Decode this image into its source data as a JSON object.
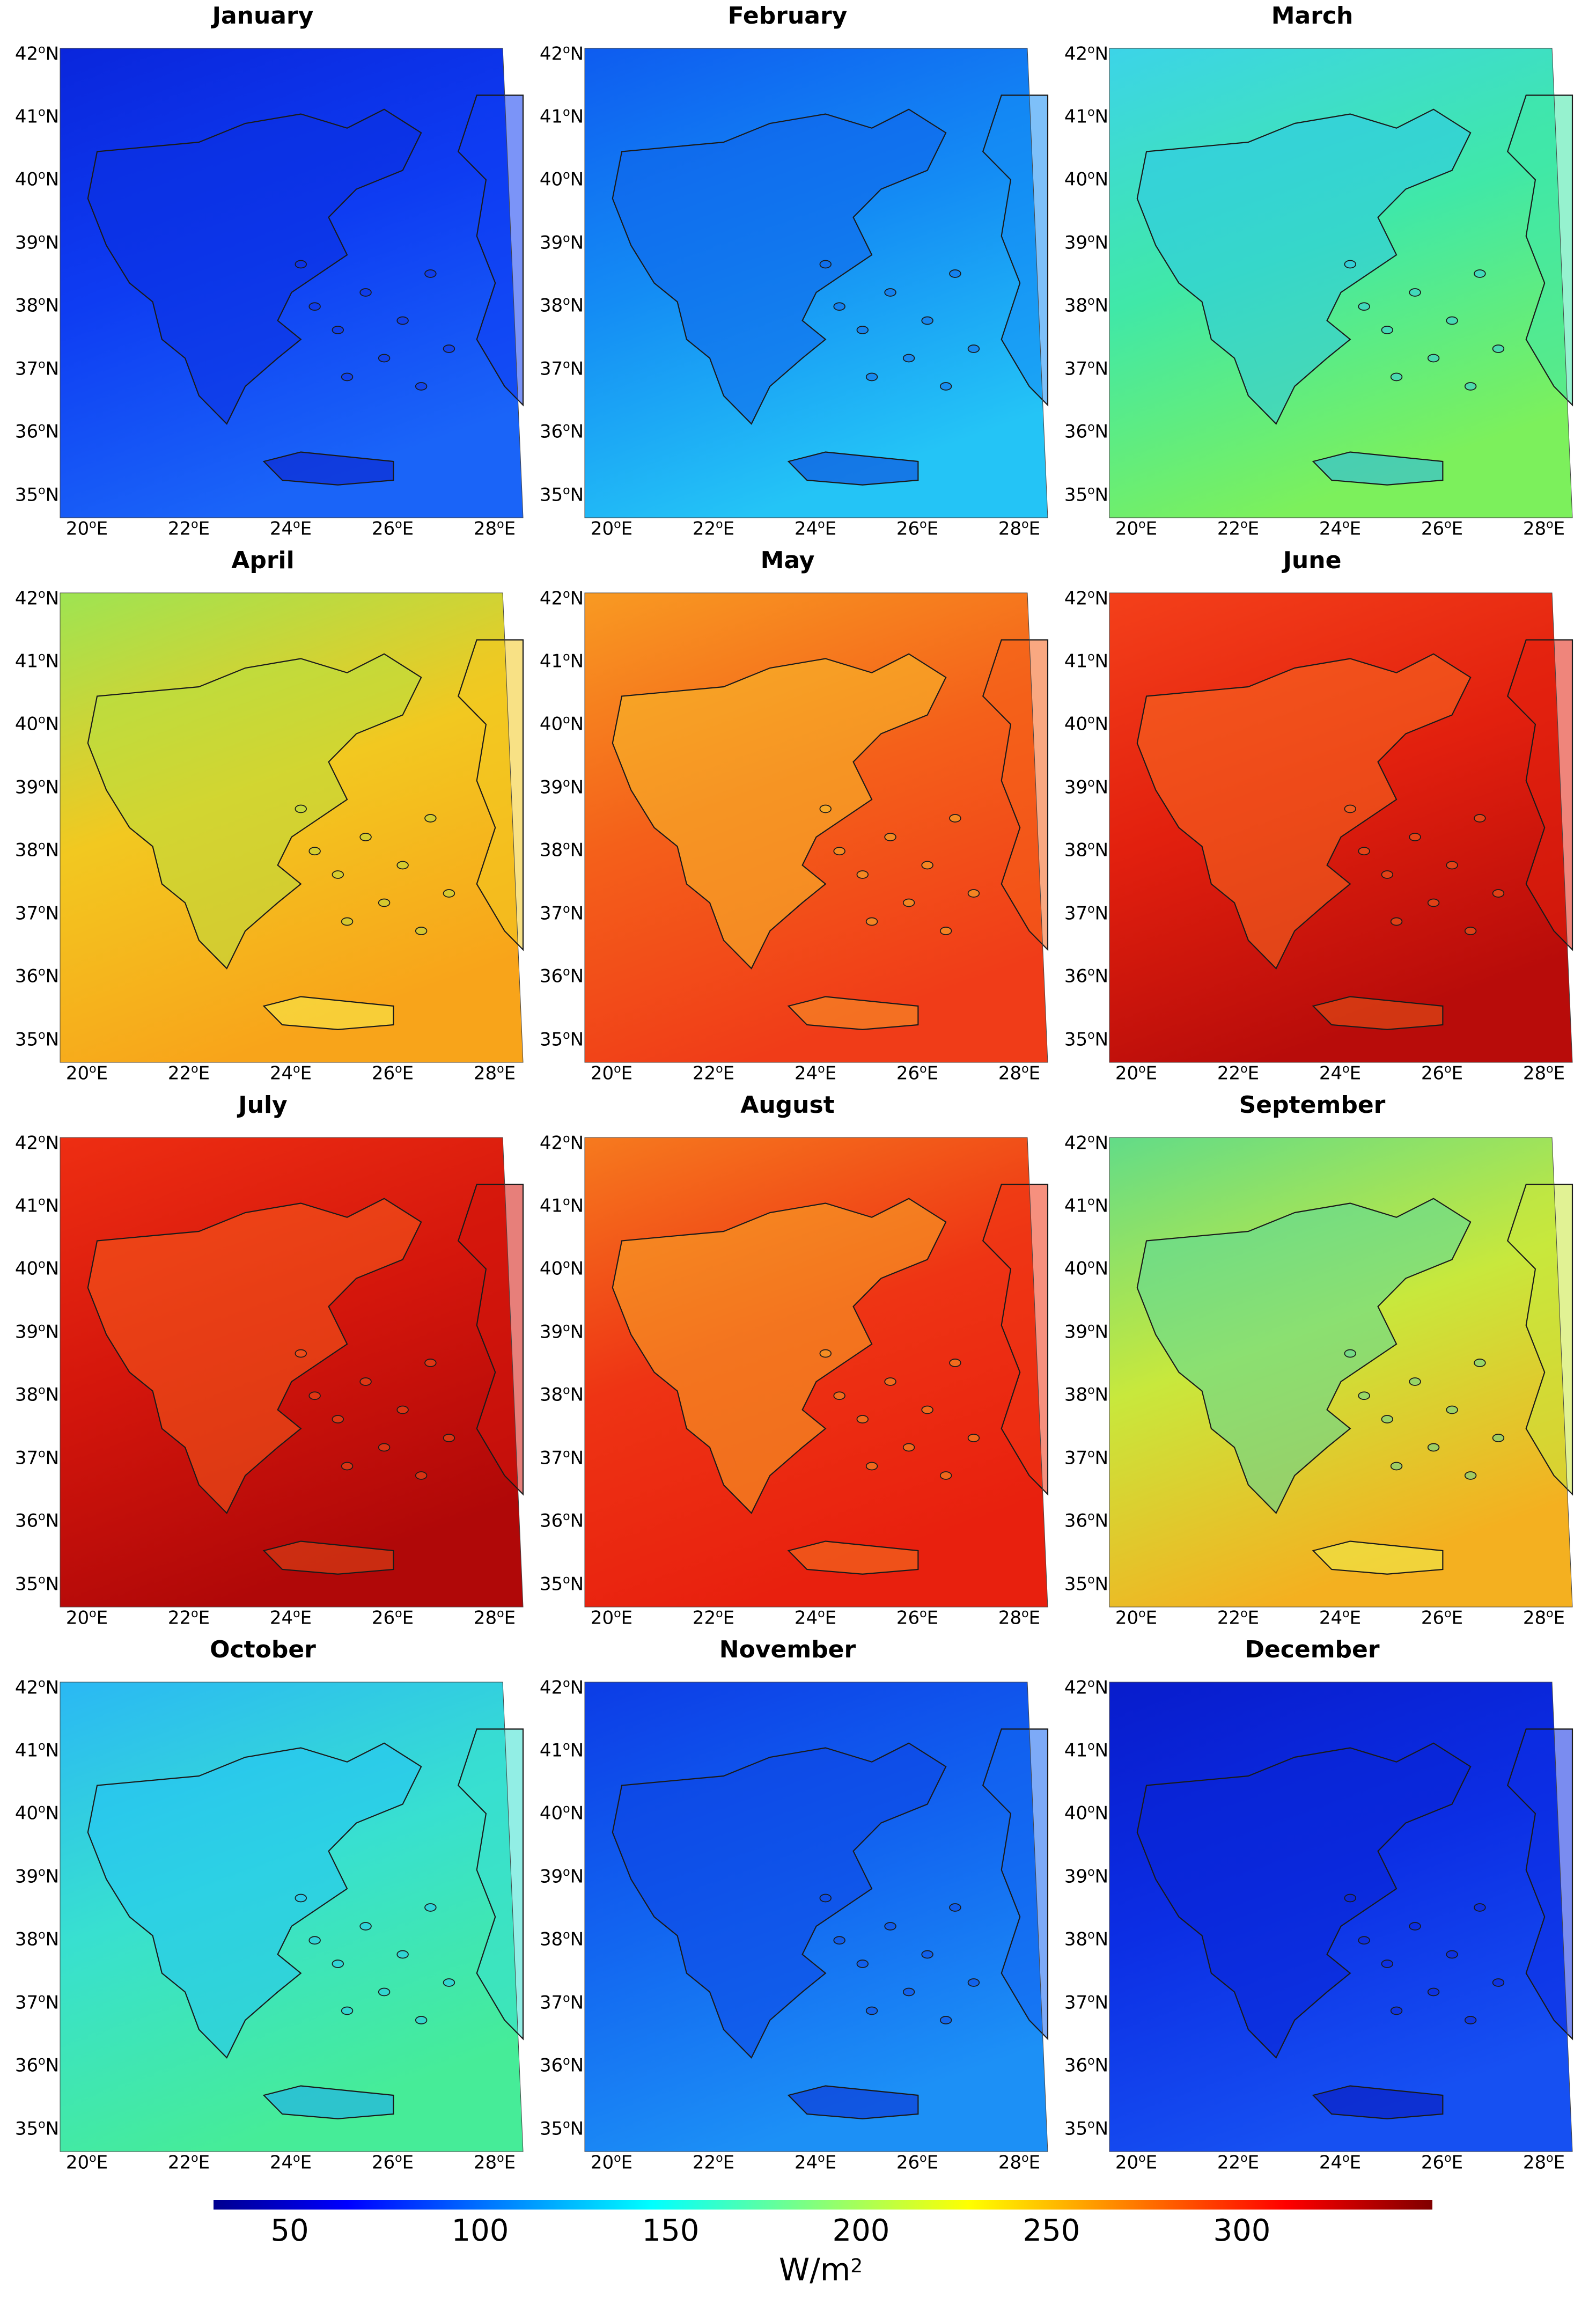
{
  "figure": {
    "panels": [
      {
        "title": "January",
        "colors": {
          "base": "#0e3cf2",
          "north": "#0a26dc",
          "south": "#1a64f8",
          "land": "#0b2fe0",
          "crete": "#0a1ec8"
        }
      },
      {
        "title": "February",
        "colors": {
          "base": "#148cf4",
          "north": "#0e5cf0",
          "south": "#24c4f6",
          "land": "#0f64ea",
          "crete": "#0a3cd8"
        }
      },
      {
        "title": "March",
        "colors": {
          "base": "#40e8a8",
          "north": "#3cd4e8",
          "south": "#7cf05c",
          "land": "#2ec8e8",
          "crete": "#24b4f0"
        }
      },
      {
        "title": "April",
        "colors": {
          "base": "#f2c820",
          "north": "#9ee452",
          "south": "#f8a41a",
          "land": "#b8e040",
          "crete": "#f8f050"
        }
      },
      {
        "title": "May",
        "colors": {
          "base": "#f4601a",
          "north": "#f89a22",
          "south": "#f03c18",
          "land": "#f8c02c",
          "crete": "#f89a2c"
        }
      },
      {
        "title": "June",
        "colors": {
          "base": "#e2200e",
          "north": "#f4401a",
          "south": "#b80c0a",
          "land": "#f86e22",
          "crete": "#e85a1a"
        }
      },
      {
        "title": "July",
        "colors": {
          "base": "#d4160c",
          "north": "#ee2e12",
          "south": "#b00808",
          "land": "#f65c1e",
          "crete": "#e04a1a"
        }
      },
      {
        "title": "August",
        "colors": {
          "base": "#ee3414",
          "north": "#f67a1e",
          "south": "#e8200e",
          "land": "#f8aa28",
          "crete": "#f47a22"
        }
      },
      {
        "title": "September",
        "colors": {
          "base": "#c8e83c",
          "north": "#62dc88",
          "south": "#f4b020",
          "land": "#5ad89c",
          "crete": "#eef050"
        }
      },
      {
        "title": "October",
        "colors": {
          "base": "#38e0d0",
          "north": "#2ab8f4",
          "south": "#46ec98",
          "land": "#24c4f4",
          "crete": "#1aa4f8"
        }
      },
      {
        "title": "November",
        "colors": {
          "base": "#1264f0",
          "north": "#0c3ce6",
          "south": "#1c90f6",
          "land": "#0c46e4",
          "crete": "#0a28d0"
        }
      },
      {
        "title": "December",
        "colors": {
          "base": "#0c2ee4",
          "north": "#081ccc",
          "south": "#1650f2",
          "land": "#0a24d6",
          "crete": "#0816b8"
        }
      }
    ],
    "lat_labels": [
      "42",
      "41",
      "40",
      "39",
      "38",
      "37",
      "36",
      "35"
    ],
    "lat_suffix": "N",
    "lon_labels": [
      "20",
      "22",
      "24",
      "26",
      "28"
    ],
    "lon_suffix": "E",
    "colorbar": {
      "ticks": [
        "50",
        "100",
        "150",
        "200",
        "250",
        "300"
      ],
      "tick_values": [
        50,
        100,
        150,
        200,
        250,
        300
      ],
      "range": [
        30,
        350
      ],
      "unit_base": "W/m",
      "unit_exp": "2",
      "colormap": "jet"
    }
  }
}
